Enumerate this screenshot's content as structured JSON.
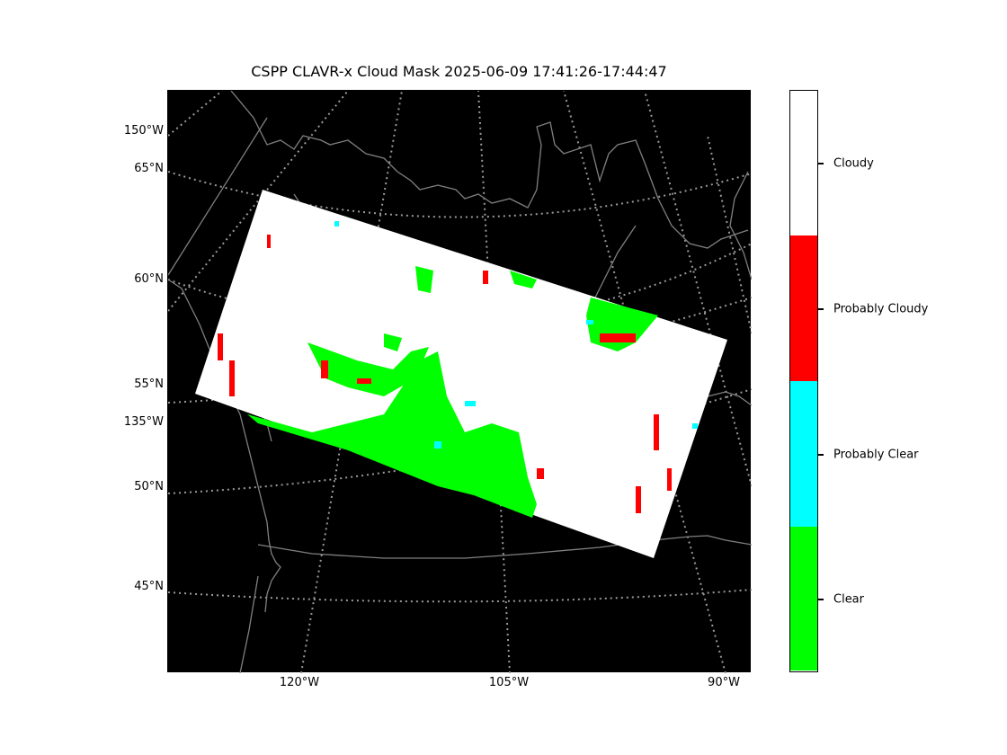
{
  "title": "CSPP CLAVR-x Cloud Mask 2025-06-09 17:41:26-17:44:47",
  "map": {
    "background_color": "#000000",
    "coastline_color": "#808080",
    "gridline_color": "#9a9a9a",
    "gridline_style": "dotted",
    "lat_labels": [
      "150°W",
      "65°N",
      "60°N",
      "55°N",
      "135°W",
      "50°N",
      "45°N"
    ],
    "lon_labels": [
      "120°W",
      "105°W",
      "90°W"
    ]
  },
  "colorbar": {
    "categories": [
      {
        "label": "Cloudy",
        "color": "#ffffff"
      },
      {
        "label": "Probably Cloudy",
        "color": "#ff0000"
      },
      {
        "label": "Probably Clear",
        "color": "#00ffff"
      },
      {
        "label": "Clear",
        "color": "#00ff00"
      }
    ]
  }
}
